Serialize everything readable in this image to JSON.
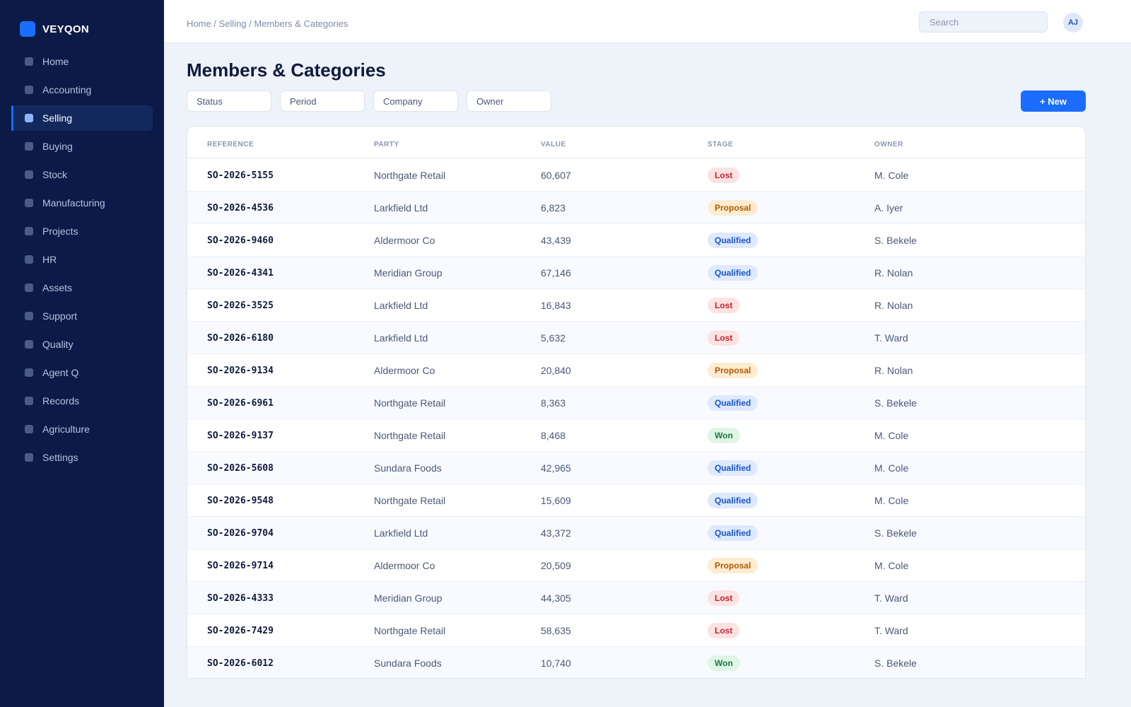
{
  "app": {
    "brand": "VEYQON"
  },
  "sidebar": {
    "items": [
      {
        "label": "Home"
      },
      {
        "label": "Accounting"
      },
      {
        "label": "Selling",
        "active": true
      },
      {
        "label": "Buying"
      },
      {
        "label": "Stock"
      },
      {
        "label": "Manufacturing"
      },
      {
        "label": "Projects"
      },
      {
        "label": "HR"
      },
      {
        "label": "Assets"
      },
      {
        "label": "Support"
      },
      {
        "label": "Quality"
      },
      {
        "label": "Agent Q"
      },
      {
        "label": "Records"
      },
      {
        "label": "Agriculture"
      },
      {
        "label": "Settings"
      }
    ]
  },
  "header": {
    "breadcrumb": "Home / Selling / Members & Categories",
    "search_placeholder": "Search",
    "avatar_initials": "AJ"
  },
  "main": {
    "title": "Members & Categories",
    "filters": [
      "Status",
      "Period",
      "Company",
      "Owner"
    ],
    "new_button": "+ New"
  },
  "table": {
    "columns": [
      "REFERENCE",
      "PARTY",
      "VALUE",
      "STAGE",
      "OWNER"
    ],
    "rows": [
      {
        "reference": "SO-2026-5155",
        "party": "Northgate Retail",
        "value": "60,607",
        "stage": "Lost",
        "owner": "M. Cole"
      },
      {
        "reference": "SO-2026-4536",
        "party": "Larkfield Ltd",
        "value": "6,823",
        "stage": "Proposal",
        "owner": "A. Iyer"
      },
      {
        "reference": "SO-2026-9460",
        "party": "Aldermoor Co",
        "value": "43,439",
        "stage": "Qualified",
        "owner": "S. Bekele"
      },
      {
        "reference": "SO-2026-4341",
        "party": "Meridian Group",
        "value": "67,146",
        "stage": "Qualified",
        "owner": "R. Nolan"
      },
      {
        "reference": "SO-2026-3525",
        "party": "Larkfield Ltd",
        "value": "16,843",
        "stage": "Lost",
        "owner": "R. Nolan"
      },
      {
        "reference": "SO-2026-6180",
        "party": "Larkfield Ltd",
        "value": "5,632",
        "stage": "Lost",
        "owner": "T. Ward"
      },
      {
        "reference": "SO-2026-9134",
        "party": "Aldermoor Co",
        "value": "20,840",
        "stage": "Proposal",
        "owner": "R. Nolan"
      },
      {
        "reference": "SO-2026-6961",
        "party": "Northgate Retail",
        "value": "8,363",
        "stage": "Qualified",
        "owner": "S. Bekele"
      },
      {
        "reference": "SO-2026-9137",
        "party": "Northgate Retail",
        "value": "8,468",
        "stage": "Won",
        "owner": "M. Cole"
      },
      {
        "reference": "SO-2026-5608",
        "party": "Sundara Foods",
        "value": "42,965",
        "stage": "Qualified",
        "owner": "M. Cole"
      },
      {
        "reference": "SO-2026-9548",
        "party": "Northgate Retail",
        "value": "15,609",
        "stage": "Qualified",
        "owner": "M. Cole"
      },
      {
        "reference": "SO-2026-9704",
        "party": "Larkfield Ltd",
        "value": "43,372",
        "stage": "Qualified",
        "owner": "S. Bekele"
      },
      {
        "reference": "SO-2026-9714",
        "party": "Aldermoor Co",
        "value": "20,509",
        "stage": "Proposal",
        "owner": "M. Cole"
      },
      {
        "reference": "SO-2026-4333",
        "party": "Meridian Group",
        "value": "44,305",
        "stage": "Lost",
        "owner": "T. Ward"
      },
      {
        "reference": "SO-2026-7429",
        "party": "Northgate Retail",
        "value": "58,635",
        "stage": "Lost",
        "owner": "T. Ward"
      },
      {
        "reference": "SO-2026-6012",
        "party": "Sundara Foods",
        "value": "10,740",
        "stage": "Won",
        "owner": "S. Bekele"
      }
    ]
  },
  "colors": {
    "sidebar_bg": "#0b1a47",
    "accent": "#1a6dff",
    "page_bg": "#eef2f9",
    "lost": "#c1262f",
    "proposal": "#b35a00",
    "qualified": "#1a55c8",
    "won": "#1d7a3e"
  },
  "icons": {
    "brand": "brand-logo-icon",
    "nav": "nav-bullet-icon"
  }
}
